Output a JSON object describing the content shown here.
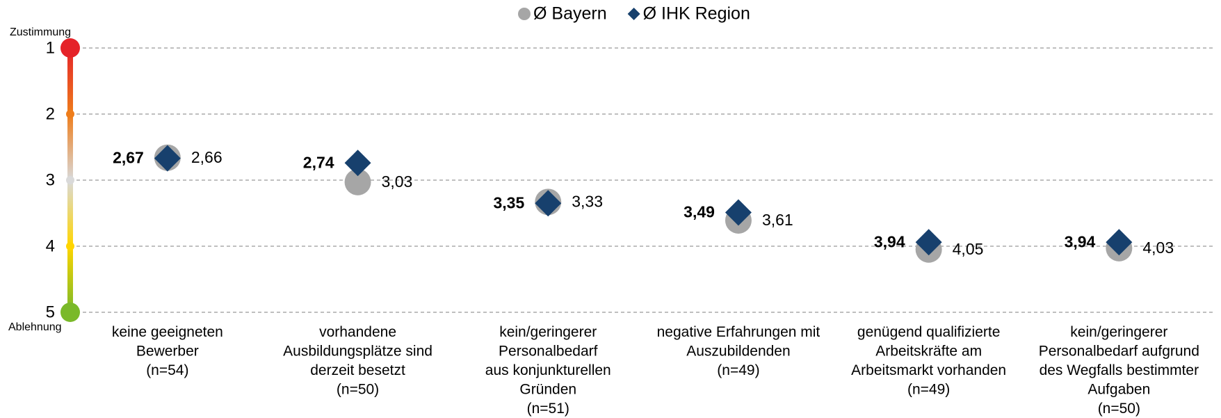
{
  "chart_data": {
    "type": "dot",
    "categories": [
      "keine geeigneten\nBewerber\n(n=54)",
      "vorhandene\nAusbildungsplätze sind\nderzeit besetzt\n(n=50)",
      "kein/geringerer\nPersonalbedarf\naus konjunkturellen\nGründen\n(n=51)",
      "negative Erfahrungen mit\nAuszubildenden\n(n=49)",
      "genügend qualifizierte\nArbeitskräfte am\nArbeitsmarkt vorhanden\n(n=49)",
      "kein/geringerer\nPersonalbedarf aufgrund\ndes Wegfalls bestimmter\nAufgaben\n(n=50)"
    ],
    "series": [
      {
        "name": "Ø Bayern",
        "color": "#a6a6a6",
        "marker": "circle",
        "values": [
          2.66,
          3.03,
          3.33,
          3.61,
          4.05,
          4.03
        ],
        "value_labels": [
          "2,66",
          "3,03",
          "3,33",
          "3,61",
          "4,05",
          "4,03"
        ]
      },
      {
        "name": "Ø IHK Region",
        "color": "#17406d",
        "marker": "diamond",
        "values": [
          2.67,
          2.74,
          3.35,
          3.49,
          3.94,
          3.94
        ],
        "value_labels": [
          "2,67",
          "2,74",
          "3,35",
          "3,49",
          "3,94",
          "3,94"
        ]
      }
    ],
    "ylim": [
      1,
      5
    ],
    "yticks": [
      1,
      2,
      3,
      4,
      5
    ],
    "y_inverted": true,
    "y_top_label": "Zustimmung",
    "y_bottom_label": "Ablehnung",
    "scale_colors": [
      "#e52329",
      "#ee7d1b",
      "#d9d9d9",
      "#ffd500",
      "#7ab929"
    ],
    "grid": true,
    "legend": "top"
  }
}
